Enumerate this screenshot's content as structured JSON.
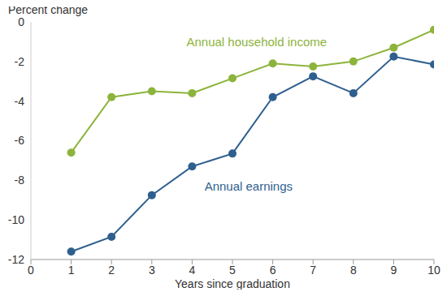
{
  "chart_data": {
    "type": "line",
    "y_label": "Percent change",
    "x_label": "Years since graduation",
    "x": [
      1,
      2,
      3,
      4,
      5,
      6,
      7,
      8,
      9,
      10
    ],
    "xlim": [
      0,
      10
    ],
    "xticks": [
      0,
      1,
      2,
      3,
      4,
      5,
      6,
      7,
      8,
      9,
      10
    ],
    "ylim": [
      -12,
      0
    ],
    "yticks": [
      -12,
      -10,
      -8,
      -6,
      -4,
      -2,
      0
    ],
    "grid": false,
    "series": [
      {
        "name": "Annual household income",
        "color": "#8cb43c",
        "marker": "circle",
        "values": [
          -6.6,
          -3.8,
          -3.5,
          -3.6,
          -2.85,
          -2.1,
          -2.25,
          -2.0,
          -1.3,
          -0.4
        ]
      },
      {
        "name": "Annual earnings",
        "color": "#2e5f8f",
        "marker": "circle",
        "values": [
          -11.6,
          -10.85,
          -8.75,
          -7.3,
          -6.65,
          -3.8,
          -2.75,
          -3.6,
          -1.75,
          -2.15
        ]
      }
    ]
  }
}
